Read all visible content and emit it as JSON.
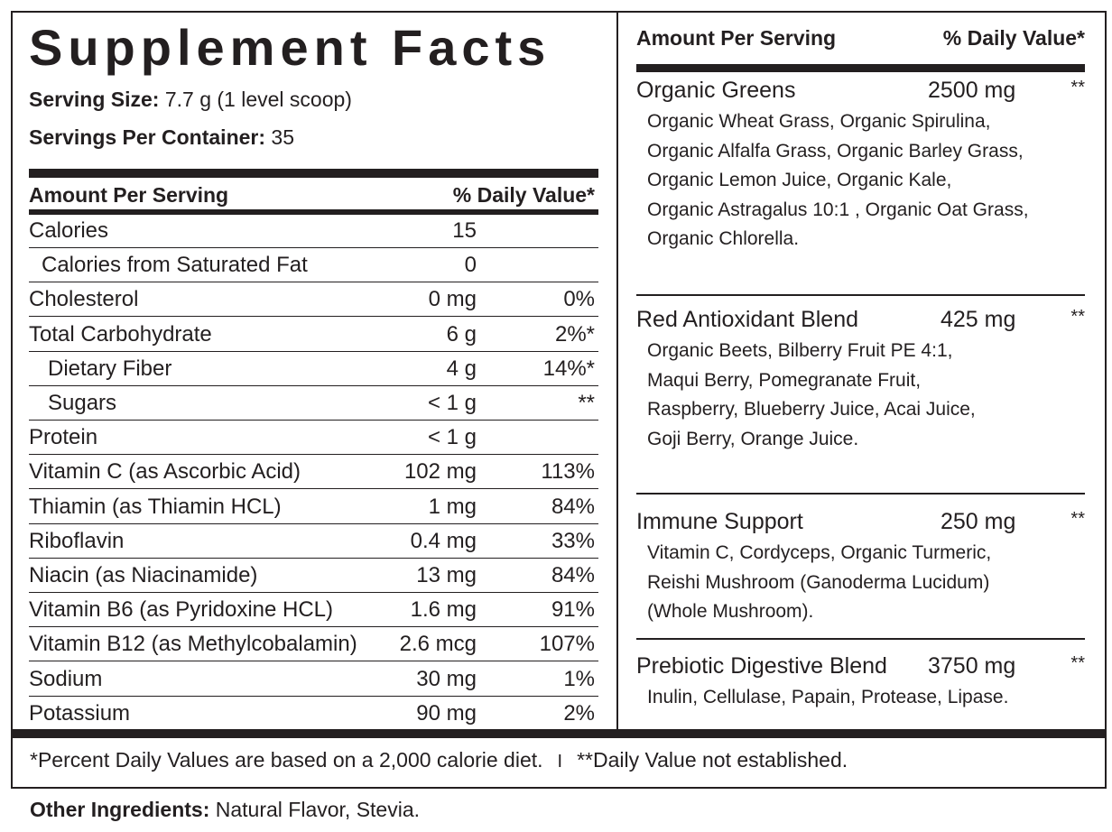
{
  "title": "Supplement Facts",
  "serving": {
    "size_label": "Serving Size:",
    "size_value": "7.7 g (1 level scoop)",
    "per_container_label": "Servings Per Container:",
    "per_container_value": "35"
  },
  "table_header": {
    "amount": "Amount Per Serving",
    "daily_value": "% Daily Value*"
  },
  "nutrients": [
    {
      "name": "Calories",
      "amount": "15",
      "dv": ""
    },
    {
      "name": "Calories from Saturated Fat",
      "amount": "0",
      "dv": ""
    },
    {
      "name": "Cholesterol",
      "amount": "0 mg",
      "dv": "0%"
    },
    {
      "name": "Total Carbohydrate",
      "amount": "6 g",
      "dv": "2%*"
    },
    {
      "name": "Dietary Fiber",
      "amount": "4 g",
      "dv": "14%*"
    },
    {
      "name": "Sugars",
      "amount": "< 1 g",
      "dv": "**"
    },
    {
      "name": "Protein",
      "amount": "< 1 g",
      "dv": ""
    },
    {
      "name": "Vitamin C (as Ascorbic Acid)",
      "amount": "102 mg",
      "dv": "113%"
    },
    {
      "name": "Thiamin (as Thiamin HCL)",
      "amount": "1 mg",
      "dv": "84%"
    },
    {
      "name": "Riboflavin",
      "amount": "0.4 mg",
      "dv": "33%"
    },
    {
      "name": "Niacin (as Niacinamide)",
      "amount": "13 mg",
      "dv": "84%"
    },
    {
      "name": "Vitamin B6 (as Pyridoxine HCL)",
      "amount": "1.6 mg",
      "dv": "91%"
    },
    {
      "name": "Vitamin B12 (as Methylcobalamin)",
      "amount": "2.6 mcg",
      "dv": "107%"
    },
    {
      "name": "Sodium",
      "amount": "30 mg",
      "dv": "1%"
    },
    {
      "name": "Potassium",
      "amount": "90 mg",
      "dv": "2%"
    }
  ],
  "right_header": {
    "amount": "Amount Per Serving",
    "daily_value": "% Daily Value*"
  },
  "blends": [
    {
      "name": "Organic Greens",
      "amount": "2500 mg",
      "dv": "**",
      "ingredients": [
        "Organic Wheat Grass, Organic Spirulina,",
        "Organic Alfalfa Grass, Organic Barley Grass,",
        "Organic Lemon Juice, Organic Kale,",
        "Organic Astragalus 10:1 , Organic Oat Grass,",
        "Organic Chlorella."
      ]
    },
    {
      "name": "Red Antioxidant Blend",
      "amount": "425 mg",
      "dv": "**",
      "ingredients": [
        "Organic Beets, Bilberry Fruit PE 4:1,",
        "Maqui Berry, Pomegranate Fruit,",
        "Raspberry, Blueberry Juice, Acai Juice,",
        "Goji Berry, Orange Juice."
      ]
    },
    {
      "name": "Immune Support",
      "amount": "250 mg",
      "dv": "**",
      "ingredients": [
        "Vitamin C, Cordyceps, Organic Turmeric,",
        "Reishi Mushroom (Ganoderma Lucidum)",
        "(Whole Mushroom)."
      ]
    },
    {
      "name": "Prebiotic Digestive Blend",
      "amount": "3750 mg",
      "dv": "**",
      "ingredients": [
        "Inulin, Cellulase, Papain, Protease, Lipase."
      ]
    }
  ],
  "footnotes": {
    "percent_dv": "*Percent Daily Values are based on a 2,000 calorie diet.",
    "separator": "I",
    "not_established": "**Daily Value not established."
  },
  "other_ingredients": {
    "label": "Other Ingredients:",
    "value": "Natural Flavor, Stevia."
  }
}
